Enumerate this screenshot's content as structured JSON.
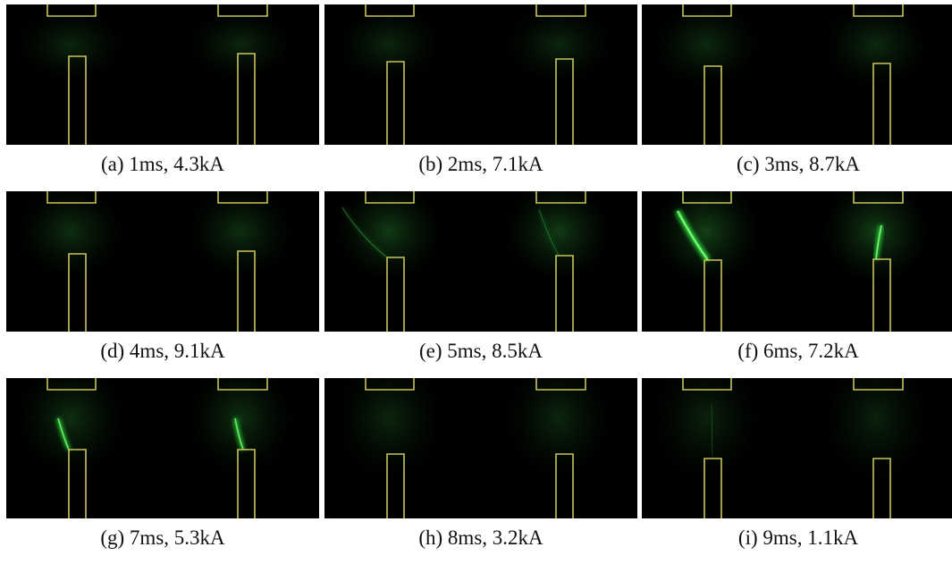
{
  "figure": {
    "panels": [
      {
        "caption": "(a) 1ms, 4.3kA"
      },
      {
        "caption": "(b) 2ms, 7.1kA"
      },
      {
        "caption": "(c) 3ms, 8.7kA"
      },
      {
        "caption": "(d) 4ms, 9.1kA"
      },
      {
        "caption": "(e) 5ms, 8.5kA"
      },
      {
        "caption": "(f) 6ms, 7.2kA"
      },
      {
        "caption": "(g) 7ms, 5.3kA"
      },
      {
        "caption": "(h) 8ms, 3.2kA"
      },
      {
        "caption": "(i) 9ms, 1.1kA"
      }
    ]
  }
}
